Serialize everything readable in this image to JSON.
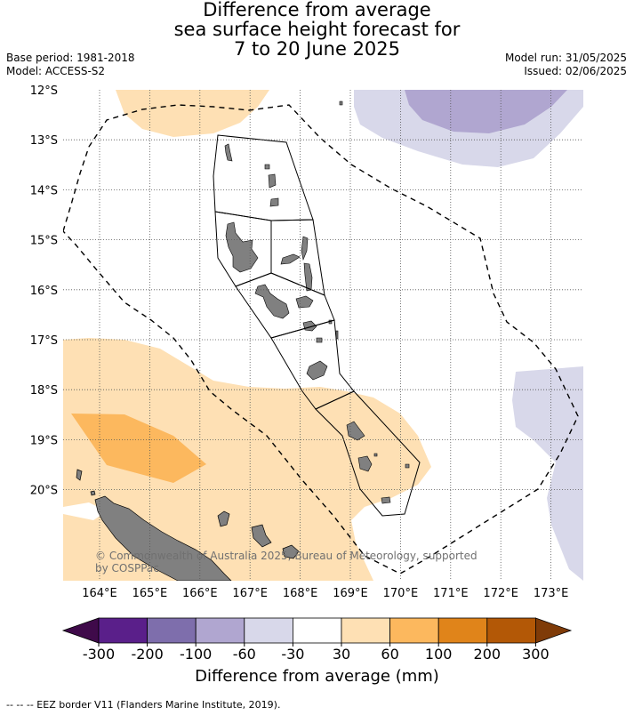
{
  "title": {
    "line1": "Difference from average",
    "line2": "sea surface height forecast for",
    "line3": "7 to 20 June 2025"
  },
  "meta": {
    "base_period": "Base period: 1981-2018",
    "model": "Model: ACCESS-S2",
    "model_run": "Model run: 31/05/2025",
    "issued": "Issued: 02/06/2025"
  },
  "map": {
    "lat_labels": [
      "12°S",
      "13°S",
      "14°S",
      "15°S",
      "16°S",
      "17°S",
      "18°S",
      "19°S",
      "20°S"
    ],
    "lon_labels": [
      "164°E",
      "165°E",
      "166°E",
      "167°E",
      "168°E",
      "169°E",
      "170°E",
      "171°E",
      "172°E",
      "173°E"
    ],
    "copyright": "© Commonwealth of Australia 2025, Bureau of Meteorology, supported by COSPPac"
  },
  "colorbar": {
    "ticks": [
      "-300",
      "-200",
      "-100",
      "-60",
      "-30",
      "30",
      "60",
      "100",
      "200",
      "300"
    ],
    "colors": [
      "#3f0a4a",
      "#5a1f8a",
      "#7e6eac",
      "#b0a6d0",
      "#d8d8ea",
      "#ffffff",
      "#fee0b4",
      "#fcb85e",
      "#e0841a",
      "#b35806",
      "#7f3b08"
    ],
    "label": "Difference from average (mm)"
  },
  "colors": {
    "land": "#808080",
    "light_orange": "#fee0b4",
    "mid_orange": "#fcb85e",
    "light_purple": "#d8d8ea",
    "mid_purple": "#b0a6d0"
  },
  "footnote": "--  --  -- EEZ border V11 (Flanders Marine Institute, 2019)."
}
